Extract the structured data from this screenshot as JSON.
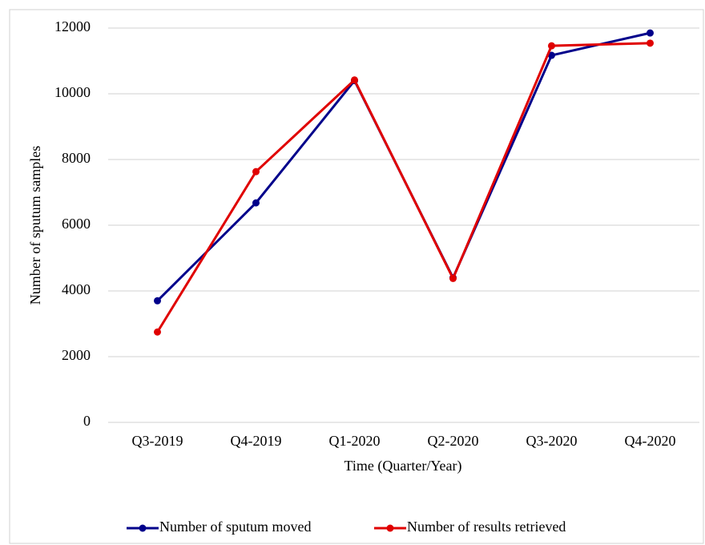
{
  "chart_data": {
    "type": "line",
    "categories": [
      "Q3-2019",
      "Q4-2019",
      "Q1-2020",
      "Q2-2020",
      "Q3-2020",
      "Q4-2020"
    ],
    "series": [
      {
        "name": "Number of sputum moved",
        "color": "#00008b",
        "values": [
          3700,
          6680,
          10400,
          4400,
          11170,
          11850
        ]
      },
      {
        "name": "Number of results retrieved",
        "color": "#e00000",
        "values": [
          2750,
          7630,
          10420,
          4380,
          11460,
          11540
        ]
      }
    ],
    "ylabel": "Number of sputum samples",
    "xlabel": "Time (Quarter/Year)",
    "ylim": [
      0,
      12000
    ],
    "yticks": [
      0,
      2000,
      4000,
      6000,
      8000,
      10000,
      12000
    ],
    "grid": true,
    "legend": "bottom"
  }
}
